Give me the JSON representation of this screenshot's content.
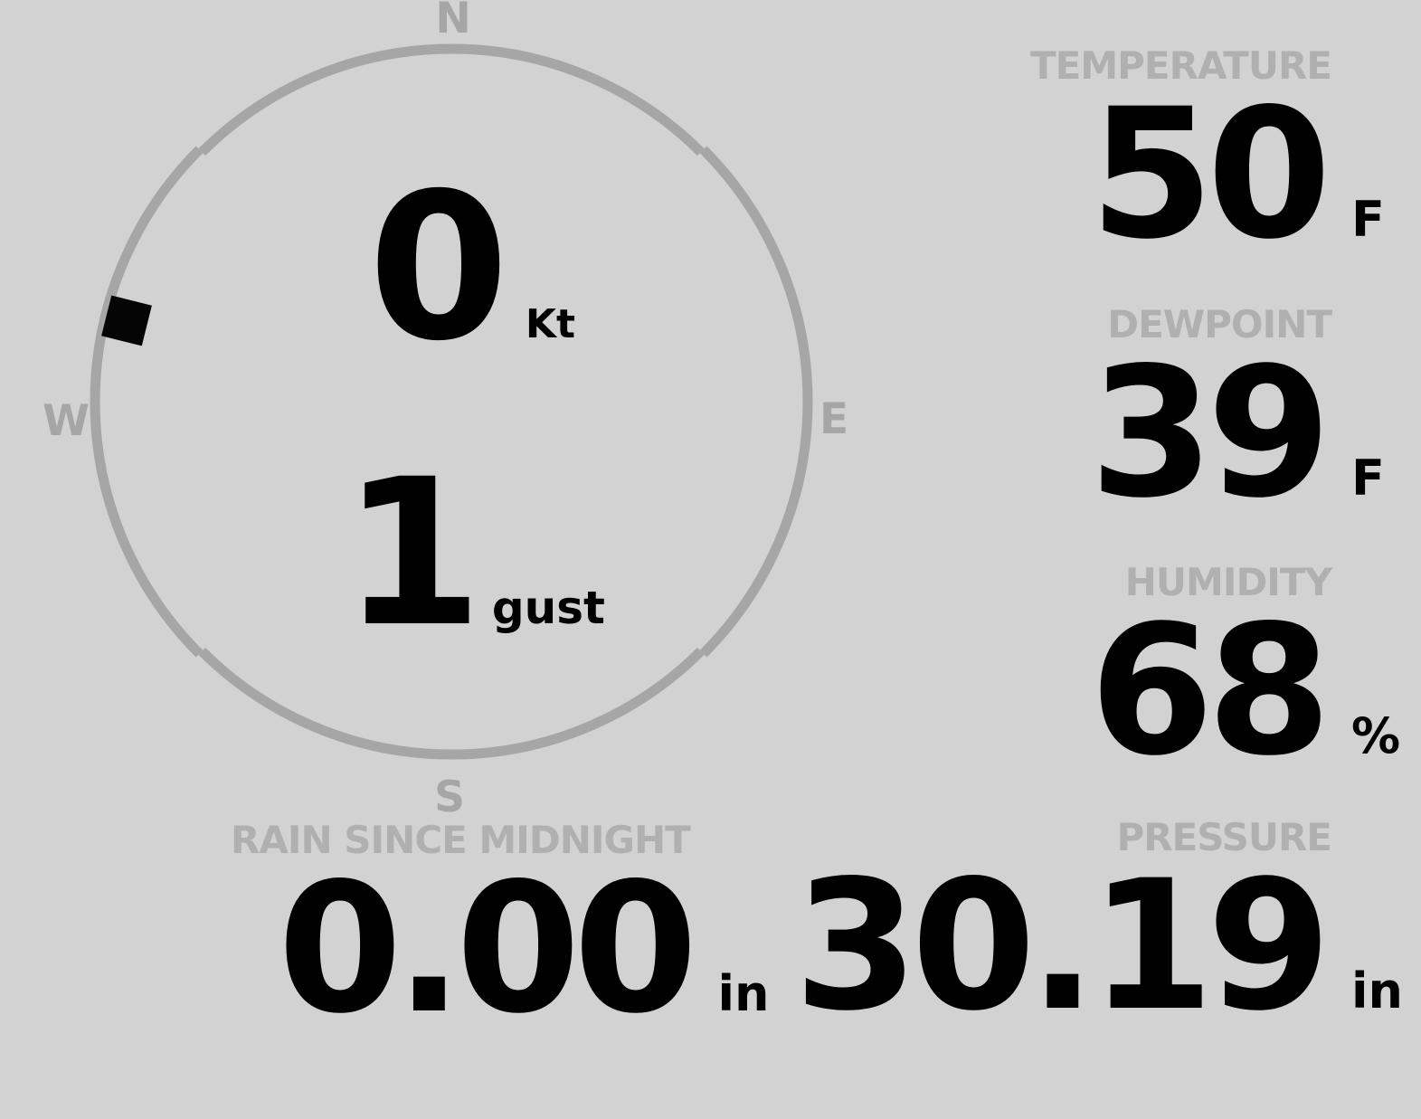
{
  "wind": {
    "speed": "0",
    "speed_unit": "Kt",
    "gust": "1",
    "gust_unit": "gust",
    "direction_deg": 284,
    "cardinals": {
      "n": "N",
      "e": "E",
      "s": "S",
      "w": "W"
    }
  },
  "metrics": {
    "temperature": {
      "label": "TEMPERATURE",
      "value": "50",
      "unit": "F"
    },
    "dewpoint": {
      "label": "DEWPOINT",
      "value": "39",
      "unit": "F"
    },
    "humidity": {
      "label": "HUMIDITY",
      "value": "68",
      "unit": "%"
    },
    "rain": {
      "label": "RAIN SINCE MIDNIGHT",
      "value": "0.00",
      "unit": "in"
    },
    "pressure": {
      "label": "PRESSURE",
      "value": "30.19",
      "unit": "in"
    }
  },
  "colors": {
    "bg": "#d2d2d2",
    "dial": "#a6a6a6",
    "label": "#b0b0b0",
    "value": "#000000"
  }
}
